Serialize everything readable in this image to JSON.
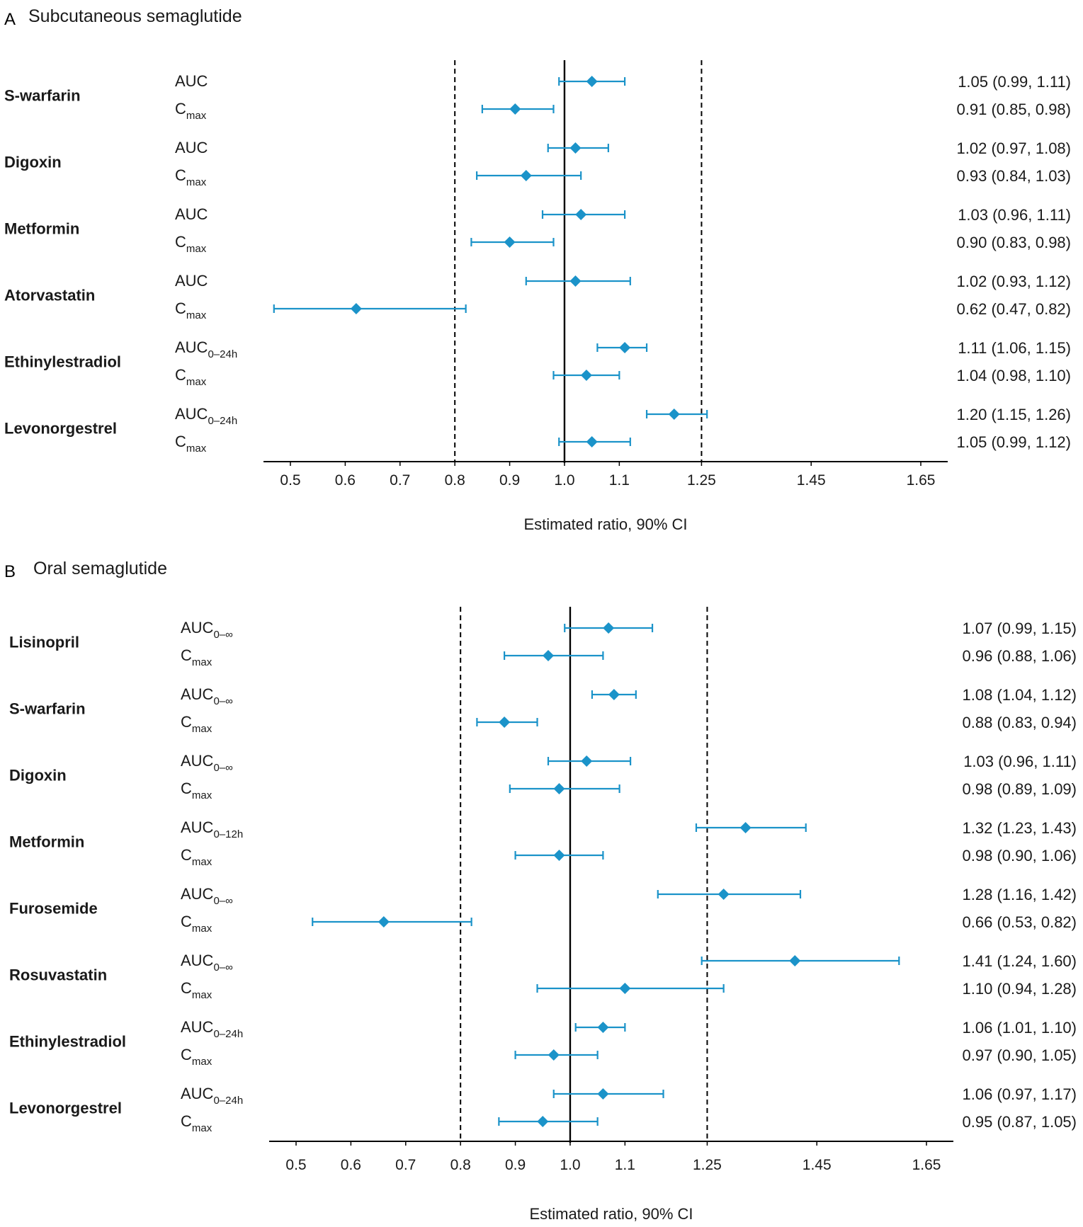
{
  "chart_data": [
    {
      "type": "forest",
      "panel": "A",
      "title": "Subcutaneous semaglutide",
      "xlabel": "Estimated ratio, 90% CI",
      "x_ticks": [
        "0.5",
        "0.6",
        "0.7",
        "0.8",
        "0.9",
        "1.0",
        "1.1",
        "1.25",
        "1.45",
        "1.65"
      ],
      "x_tick_values": [
        0.5,
        0.6,
        0.7,
        0.8,
        0.9,
        1.0,
        1.1,
        1.25,
        1.45,
        1.65
      ],
      "reference_lines": {
        "solid": 1.0,
        "dashed": [
          0.8,
          1.25
        ]
      },
      "marker_color": "#1b93c9",
      "groups": [
        {
          "drug": "S-warfarin",
          "rows": [
            {
              "metric": "AUC",
              "sub": "",
              "est": 1.05,
              "lo": 0.99,
              "hi": 1.11,
              "label": "1.05 (0.99,  1.11)"
            },
            {
              "metric": "C",
              "sub": "max",
              "est": 0.91,
              "lo": 0.85,
              "hi": 0.98,
              "label": "0.91 (0.85,  0.98)"
            }
          ]
        },
        {
          "drug": "Digoxin",
          "rows": [
            {
              "metric": "AUC",
              "sub": "",
              "est": 1.02,
              "lo": 0.97,
              "hi": 1.08,
              "label": "1.02 (0.97,  1.08)"
            },
            {
              "metric": "C",
              "sub": "max",
              "est": 0.93,
              "lo": 0.84,
              "hi": 1.03,
              "label": "0.93 (0.84,  1.03)"
            }
          ]
        },
        {
          "drug": "Metformin",
          "rows": [
            {
              "metric": "AUC",
              "sub": "",
              "est": 1.03,
              "lo": 0.96,
              "hi": 1.11,
              "label": "1.03 (0.96,  1.11)"
            },
            {
              "metric": "C",
              "sub": "max",
              "est": 0.9,
              "lo": 0.83,
              "hi": 0.98,
              "label": "0.90 (0.83,  0.98)"
            }
          ]
        },
        {
          "drug": "Atorvastatin",
          "rows": [
            {
              "metric": "AUC",
              "sub": "",
              "est": 1.02,
              "lo": 0.93,
              "hi": 1.12,
              "label": "1.02 (0.93,  1.12)"
            },
            {
              "metric": "C",
              "sub": "max",
              "est": 0.62,
              "lo": 0.47,
              "hi": 0.82,
              "label": "0.62 (0.47,  0.82)"
            }
          ]
        },
        {
          "drug": "Ethinylestradiol",
          "rows": [
            {
              "metric": "AUC",
              "sub": "0–24h",
              "est": 1.11,
              "lo": 1.06,
              "hi": 1.15,
              "label": "1.11 (1.06,  1.15)"
            },
            {
              "metric": "C",
              "sub": "max",
              "est": 1.04,
              "lo": 0.98,
              "hi": 1.1,
              "label": "1.04 (0.98,  1.10)"
            }
          ]
        },
        {
          "drug": "Levonorgestrel",
          "rows": [
            {
              "metric": "AUC",
              "sub": "0–24h",
              "est": 1.2,
              "lo": 1.15,
              "hi": 1.26,
              "label": "1.20 (1.15,  1.26)"
            },
            {
              "metric": "C",
              "sub": "max",
              "est": 1.05,
              "lo": 0.99,
              "hi": 1.12,
              "label": "1.05 (0.99,  1.12)"
            }
          ]
        }
      ]
    },
    {
      "type": "forest",
      "panel": "B",
      "title": "Oral semaglutide",
      "xlabel": "Estimated ratio, 90% CI",
      "x_ticks": [
        "0.5",
        "0.6",
        "0.7",
        "0.8",
        "0.9",
        "1.0",
        "1.1",
        "1.25",
        "1.45",
        "1.65"
      ],
      "x_tick_values": [
        0.5,
        0.6,
        0.7,
        0.8,
        0.9,
        1.0,
        1.1,
        1.25,
        1.45,
        1.65
      ],
      "reference_lines": {
        "solid": 1.0,
        "dashed": [
          0.8,
          1.25
        ]
      },
      "marker_color": "#1b93c9",
      "groups": [
        {
          "drug": "Lisinopril",
          "rows": [
            {
              "metric": "AUC",
              "sub": "0–∞",
              "est": 1.07,
              "lo": 0.99,
              "hi": 1.15,
              "label": "1.07 (0.99,  1.15)"
            },
            {
              "metric": "C",
              "sub": "max",
              "est": 0.96,
              "lo": 0.88,
              "hi": 1.06,
              "label": "0.96 (0.88,  1.06)"
            }
          ]
        },
        {
          "drug": "S-warfarin",
          "rows": [
            {
              "metric": "AUC",
              "sub": "0–∞",
              "est": 1.08,
              "lo": 1.04,
              "hi": 1.12,
              "label": "1.08 (1.04,  1.12)"
            },
            {
              "metric": "C",
              "sub": "max",
              "est": 0.88,
              "lo": 0.83,
              "hi": 0.94,
              "label": "0.88 (0.83,  0.94)"
            }
          ]
        },
        {
          "drug": "Digoxin",
          "rows": [
            {
              "metric": "AUC",
              "sub": "0–∞",
              "est": 1.03,
              "lo": 0.96,
              "hi": 1.11,
              "label": "1.03 (0.96,  1.11)"
            },
            {
              "metric": "C",
              "sub": "max",
              "est": 0.98,
              "lo": 0.89,
              "hi": 1.09,
              "label": "0.98 (0.89,  1.09)"
            }
          ]
        },
        {
          "drug": "Metformin",
          "rows": [
            {
              "metric": "AUC",
              "sub": "0–12h",
              "est": 1.32,
              "lo": 1.23,
              "hi": 1.43,
              "label": "1.32 (1.23,  1.43)"
            },
            {
              "metric": "C",
              "sub": "max",
              "est": 0.98,
              "lo": 0.9,
              "hi": 1.06,
              "label": "0.98 (0.90,  1.06)"
            }
          ]
        },
        {
          "drug": "Furosemide",
          "rows": [
            {
              "metric": "AUC",
              "sub": "0–∞",
              "est": 1.28,
              "lo": 1.16,
              "hi": 1.42,
              "label": "1.28 (1.16,  1.42)"
            },
            {
              "metric": "C",
              "sub": "max",
              "est": 0.66,
              "lo": 0.53,
              "hi": 0.82,
              "label": "0.66 (0.53,  0.82)"
            }
          ]
        },
        {
          "drug": "Rosuvastatin",
          "rows": [
            {
              "metric": "AUC",
              "sub": "0–∞",
              "est": 1.41,
              "lo": 1.24,
              "hi": 1.6,
              "label": "1.41 (1.24,  1.60)"
            },
            {
              "metric": "C",
              "sub": "max",
              "est": 1.1,
              "lo": 0.94,
              "hi": 1.28,
              "label": "1.10 (0.94,  1.28)"
            }
          ]
        },
        {
          "drug": "Ethinylestradiol",
          "rows": [
            {
              "metric": "AUC",
              "sub": "0–24h",
              "est": 1.06,
              "lo": 1.01,
              "hi": 1.1,
              "label": "1.06 (1.01,  1.10)"
            },
            {
              "metric": "C",
              "sub": "max",
              "est": 0.97,
              "lo": 0.9,
              "hi": 1.05,
              "label": "0.97 (0.90,  1.05)"
            }
          ]
        },
        {
          "drug": "Levonorgestrel",
          "rows": [
            {
              "metric": "AUC",
              "sub": "0–24h",
              "est": 1.06,
              "lo": 0.97,
              "hi": 1.17,
              "label": "1.06 (0.97,  1.17)"
            },
            {
              "metric": "C",
              "sub": "max",
              "est": 0.95,
              "lo": 0.87,
              "hi": 1.05,
              "label": "0.95 (0.87,  1.05)"
            }
          ]
        }
      ]
    }
  ]
}
